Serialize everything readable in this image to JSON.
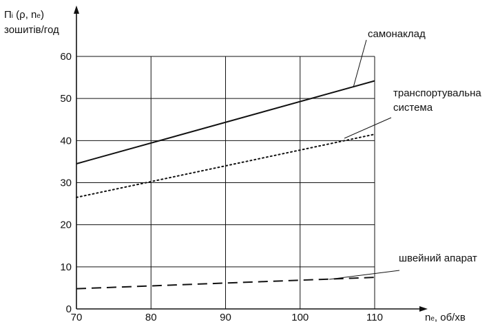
{
  "chart_data": {
    "type": "line",
    "ylabel_line1_main": "П",
    "ylabel_line1_sub": "i",
    "ylabel_line1_rest": " (ρ, n",
    "ylabel_line1_sub2": "e",
    "ylabel_line1_end": ")",
    "ylabel_line2": "зошитів/год",
    "xlabel_main": "n",
    "xlabel_sub": "e",
    "xlabel_rest": ", об/хв",
    "xlim": [
      70,
      110
    ],
    "ylim": [
      0,
      60
    ],
    "x_ticks": [
      70,
      80,
      90,
      100,
      110
    ],
    "y_ticks": [
      0,
      10,
      20,
      30,
      40,
      50,
      60
    ],
    "grid": true,
    "series": [
      {
        "name": "самонаклад",
        "style": "solid",
        "color": "#111111",
        "x": [
          70,
          110
        ],
        "y": [
          34.5,
          54.2
        ]
      },
      {
        "name_lines": [
          "транспортувальна",
          "система"
        ],
        "style": "dotted",
        "color": "#111111",
        "x": [
          70,
          110
        ],
        "y": [
          26.5,
          41.5
        ]
      },
      {
        "name": "швейний апарат",
        "style": "dashed",
        "color": "#111111",
        "x": [
          70,
          110
        ],
        "y": [
          4.8,
          7.5
        ]
      }
    ]
  }
}
